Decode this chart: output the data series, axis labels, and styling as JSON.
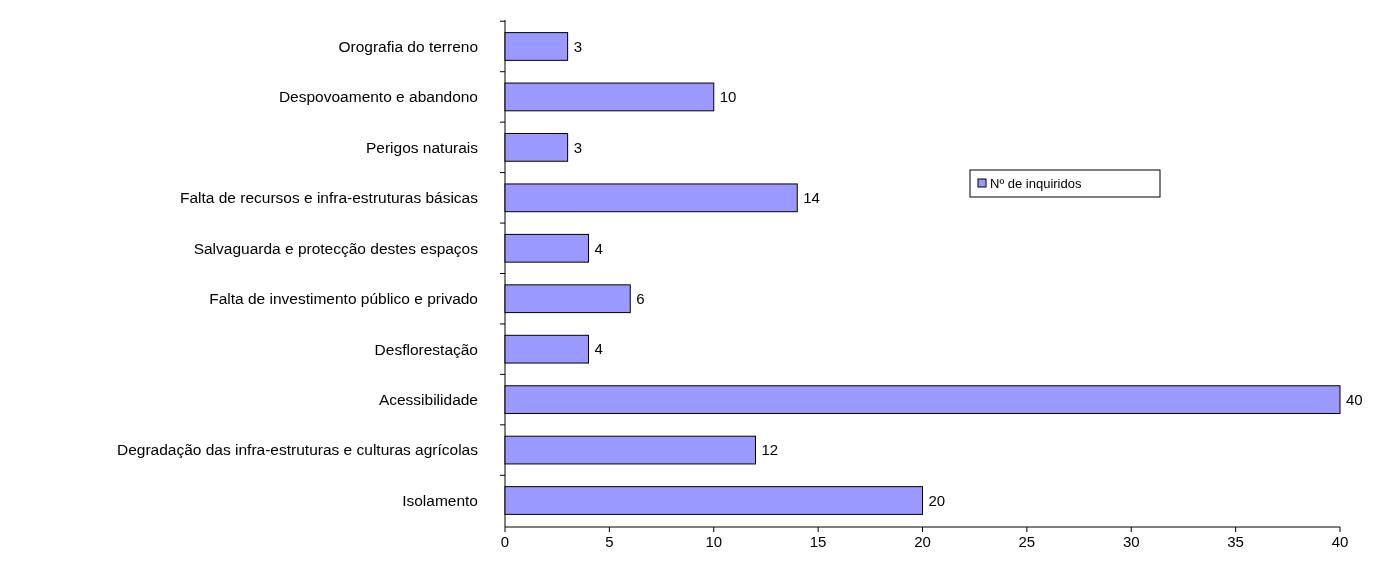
{
  "chart_data": {
    "type": "bar",
    "orientation": "horizontal",
    "categories": [
      "Orografia do terreno",
      "Despovoamento e abandono",
      "Perigos naturais",
      "Falta de recursos e infra-estruturas básicas",
      "Salvaguarda e protecção destes espaços",
      "Falta de investimento público e privado",
      "Desflorestação",
      "Acessibilidade",
      "Degradação das infra-estruturas e culturas agrícolas",
      "Isolamento"
    ],
    "series": [
      {
        "name": "Nº de inquiridos",
        "color": "#9999ff",
        "values": [
          3,
          10,
          3,
          14,
          4,
          6,
          4,
          40,
          12,
          20
        ]
      }
    ],
    "xlim": [
      0,
      40
    ],
    "xticks": [
      0,
      5,
      10,
      15,
      20,
      25,
      30,
      35,
      40
    ],
    "data_labels": true,
    "legend": "right",
    "grid": false
  }
}
